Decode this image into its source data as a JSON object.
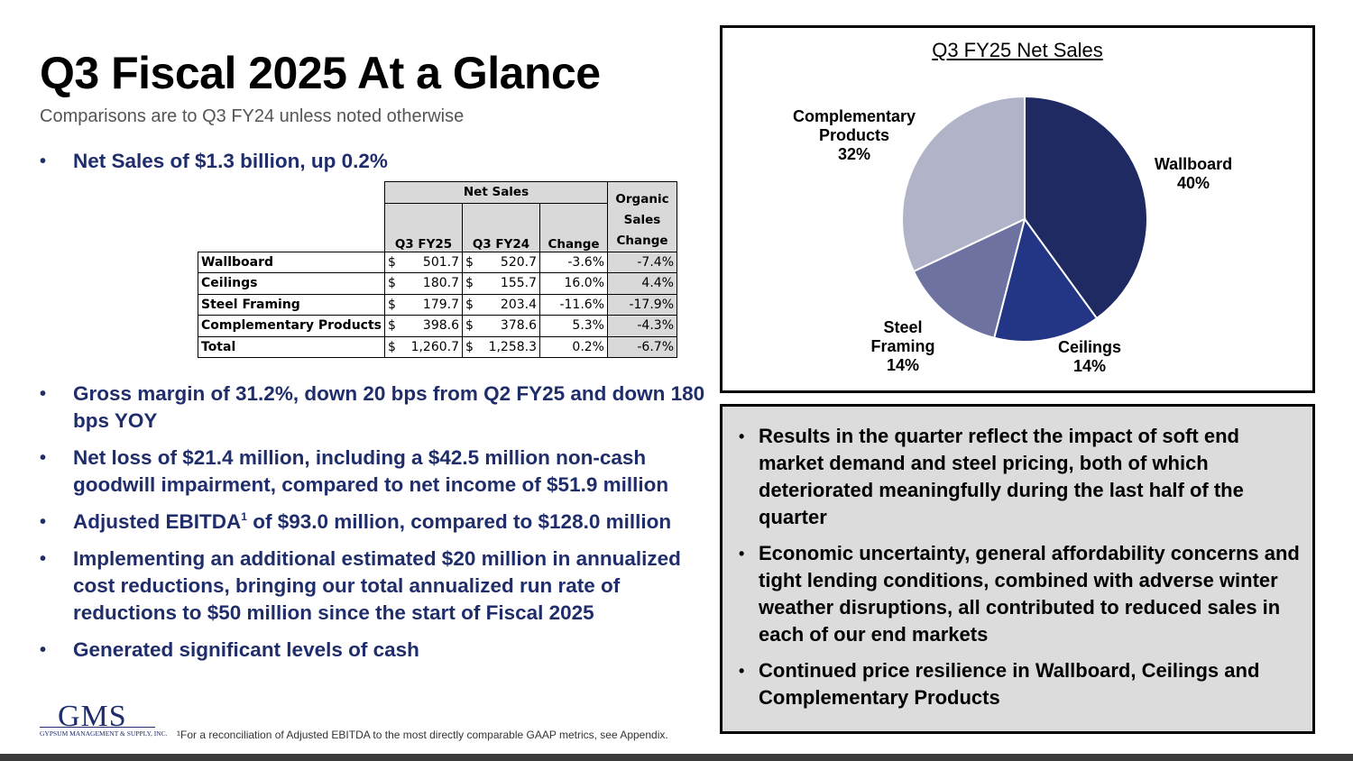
{
  "title": "Q3 Fiscal 2025 At a Glance",
  "subtitle": "Comparisons are to Q3 FY24 unless noted otherwise",
  "top_bullet": "Net Sales of $1.3 billion, up 0.2%",
  "table": {
    "group_header": "Net Sales",
    "columns": [
      "Q3 FY25",
      "Q3 FY24",
      "Change"
    ],
    "organic_header": [
      "Organic",
      "Sales",
      "Change"
    ],
    "rows": [
      {
        "label": "Wallboard",
        "fy25": "501.7",
        "fy24": "520.7",
        "change": "-3.6%",
        "organic": "-7.4%"
      },
      {
        "label": "Ceilings",
        "fy25": "180.7",
        "fy24": "155.7",
        "change": "16.0%",
        "organic": "4.4%"
      },
      {
        "label": "Steel Framing",
        "fy25": "179.7",
        "fy24": "203.4",
        "change": "-11.6%",
        "organic": "-17.9%"
      },
      {
        "label": "Complementary Products",
        "fy25": "398.6",
        "fy24": "378.6",
        "change": "5.3%",
        "organic": "-4.3%"
      },
      {
        "label": "Total",
        "fy25": "1,260.7",
        "fy24": "1,258.3",
        "change": "0.2%",
        "organic": "-6.7%"
      }
    ],
    "currency": "$"
  },
  "bullets": [
    "Gross margin of 31.2%, down 20 bps from Q2 FY25 and down 180 bps YOY",
    "Net loss of $21.4 million, including a $42.5 million non-cash goodwill impairment, compared to net income of $51.9 million",
    "Adjusted EBITDA",
    "Implementing an additional estimated $20 million in annualized cost reductions, bringing our total annualized run rate of reductions to $50 million since the start of Fiscal 2025",
    "Generated significant levels of cash"
  ],
  "ebitda_sup": "1",
  "ebitda_rest": " of $93.0 million, compared to $128.0 million",
  "chart_data": {
    "type": "pie",
    "title": "Q3 FY25 Net Sales",
    "slices": [
      {
        "label": "Wallboard",
        "value": 40,
        "pct": "40%",
        "color": "#1f2a63"
      },
      {
        "label": "Ceilings",
        "value": 14,
        "pct": "14%",
        "color": "#233585"
      },
      {
        "label": "Steel Framing",
        "value": 14,
        "pct": "14%",
        "color": "#6d72a0"
      },
      {
        "label": "Complementary Products",
        "value": 32,
        "pct": "32%",
        "color": "#b1b4c9"
      }
    ]
  },
  "notes": [
    "Results in the quarter reflect the impact of soft end market demand and steel pricing, both of which deteriorated meaningfully during the last half of the quarter",
    "Economic uncertainty, general affordability concerns and tight lending conditions, combined with adverse winter weather disruptions, all contributed to reduced sales in each of our end markets",
    "Continued price resilience in Wallboard, Ceilings and Complementary Products"
  ],
  "logo": {
    "name": "GMS",
    "tagline": "GYPSUM MANAGEMENT & SUPPLY, INC."
  },
  "footnote": "¹For a reconciliation of Adjusted EBITDA to the most directly comparable GAAP metrics, see Appendix."
}
